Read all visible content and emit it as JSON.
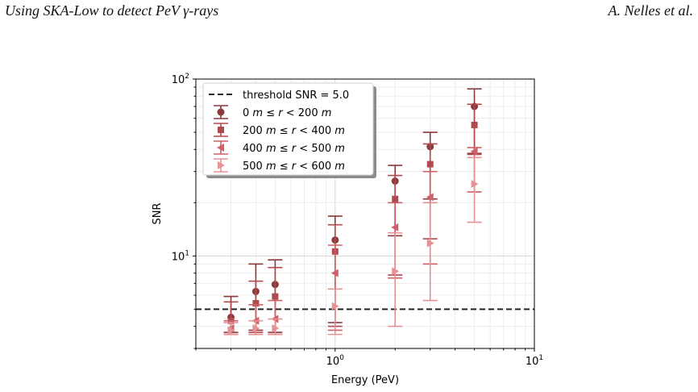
{
  "header": {
    "title": "Using SKA-Low to detect PeV γ-rays",
    "authors": "A. Nelles et al."
  },
  "chart_data": {
    "type": "scatter",
    "xlabel": "Energy (PeV)",
    "ylabel": "SNR",
    "xscale": "log",
    "yscale": "log",
    "xlim": [
      0.2,
      10
    ],
    "ylim": [
      3,
      100
    ],
    "grid": true,
    "legend_position": "top-left",
    "x_ticks": [
      {
        "value": 1,
        "base": "10",
        "exp": "0"
      },
      {
        "value": 10,
        "base": "10",
        "exp": "1"
      }
    ],
    "y_ticks": [
      {
        "value": 10,
        "base": "10",
        "exp": "1"
      },
      {
        "value": 100,
        "base": "10",
        "exp": "2"
      }
    ],
    "threshold": {
      "label": "threshold SNR = 5.0",
      "value": 5.0,
      "color": "#222222"
    },
    "series": [
      {
        "name": "0 m ≤ r < 200 m",
        "legend": {
          "lo": "0",
          "hi": "200"
        },
        "marker": "circle",
        "color": "#8b3a3a",
        "points": [
          {
            "x": 0.3,
            "y": 4.5,
            "ylo": 3.7,
            "yhi": 5.9
          },
          {
            "x": 0.4,
            "y": 6.3,
            "ylo": 3.8,
            "yhi": 9.0
          },
          {
            "x": 0.5,
            "y": 6.9,
            "ylo": 3.7,
            "yhi": 9.5
          },
          {
            "x": 1.0,
            "y": 12.3,
            "ylo": 4.2,
            "yhi": 16.8
          },
          {
            "x": 2.0,
            "y": 26.5,
            "ylo": 13.0,
            "yhi": 32.5
          },
          {
            "x": 3.0,
            "y": 41.5,
            "ylo": 21.0,
            "yhi": 50.0
          },
          {
            "x": 5.0,
            "y": 70.0,
            "ylo": 38.0,
            "yhi": 88.0
          }
        ]
      },
      {
        "name": "200 m ≤ r < 400 m",
        "legend": {
          "lo": "200",
          "hi": "400"
        },
        "marker": "square",
        "color": "#b04a4f",
        "points": [
          {
            "x": 0.3,
            "y": 4.3,
            "ylo": 3.6,
            "yhi": 5.5
          },
          {
            "x": 0.4,
            "y": 5.4,
            "ylo": 3.7,
            "yhi": 7.2
          },
          {
            "x": 0.5,
            "y": 5.9,
            "ylo": 3.6,
            "yhi": 8.6
          },
          {
            "x": 1.0,
            "y": 10.6,
            "ylo": 4.0,
            "yhi": 15.0
          },
          {
            "x": 2.0,
            "y": 21.0,
            "ylo": 7.8,
            "yhi": 28.5
          },
          {
            "x": 3.0,
            "y": 33.0,
            "ylo": 12.5,
            "yhi": 43.0
          },
          {
            "x": 5.0,
            "y": 55.0,
            "ylo": 37.5,
            "yhi": 72.0
          }
        ]
      },
      {
        "name": "400 m ≤ r < 500 m",
        "legend": {
          "lo": "400",
          "hi": "500"
        },
        "marker": "triangle-left",
        "color": "#cd6068",
        "points": [
          {
            "x": 0.3,
            "y": 3.9,
            "ylo": 3.6,
            "yhi": 4.3
          },
          {
            "x": 0.4,
            "y": 4.3,
            "ylo": 3.6,
            "yhi": 5.3
          },
          {
            "x": 0.5,
            "y": 4.4,
            "ylo": 3.6,
            "yhi": 5.6
          },
          {
            "x": 1.0,
            "y": 8.0,
            "ylo": 3.8,
            "yhi": 11.5
          },
          {
            "x": 2.0,
            "y": 14.5,
            "ylo": 7.5,
            "yhi": 20.0
          },
          {
            "x": 3.0,
            "y": 21.5,
            "ylo": 9.0,
            "yhi": 30.0
          },
          {
            "x": 5.0,
            "y": 39.0,
            "ylo": 23.0,
            "yhi": 41.0
          }
        ]
      },
      {
        "name": "500 m ≤ r < 600 m",
        "legend": {
          "lo": "500",
          "hi": "600"
        },
        "marker": "triangle-right",
        "color": "#e69196",
        "points": [
          {
            "x": 0.3,
            "y": 3.8,
            "ylo": 3.6,
            "yhi": 4.2
          },
          {
            "x": 0.4,
            "y": 3.9,
            "ylo": 3.6,
            "yhi": 4.3
          },
          {
            "x": 0.5,
            "y": 3.9,
            "ylo": 3.6,
            "yhi": 4.4
          },
          {
            "x": 1.0,
            "y": 5.2,
            "ylo": 3.6,
            "yhi": 6.5
          },
          {
            "x": 2.0,
            "y": 8.2,
            "ylo": 4.0,
            "yhi": 13.5
          },
          {
            "x": 3.0,
            "y": 11.8,
            "ylo": 5.6,
            "yhi": 20.0
          },
          {
            "x": 5.0,
            "y": 25.5,
            "ylo": 15.5,
            "yhi": 36.0
          }
        ]
      }
    ]
  }
}
